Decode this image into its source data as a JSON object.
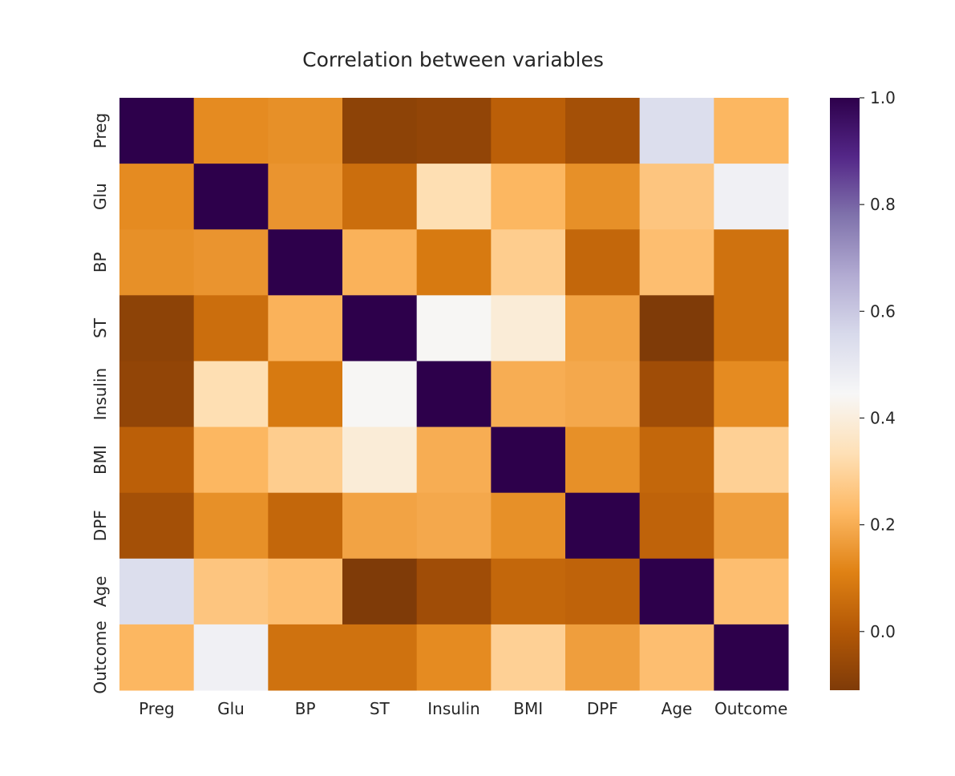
{
  "chart_data": {
    "type": "heatmap",
    "title": "Correlation between variables",
    "xlabel": "",
    "ylabel": "",
    "labels": [
      "Preg",
      "Glu",
      "BP",
      "ST",
      "Insulin",
      "BMI",
      "DPF",
      "Age",
      "Outcome"
    ],
    "values": [
      [
        1.0,
        0.13,
        0.14,
        -0.08,
        -0.07,
        0.02,
        -0.03,
        0.54,
        0.22
      ],
      [
        0.13,
        1.0,
        0.15,
        0.06,
        0.33,
        0.22,
        0.14,
        0.26,
        0.47
      ],
      [
        0.14,
        0.15,
        1.0,
        0.21,
        0.09,
        0.28,
        0.04,
        0.24,
        0.07
      ],
      [
        -0.08,
        0.06,
        0.21,
        1.0,
        0.44,
        0.39,
        0.18,
        -0.11,
        0.07
      ],
      [
        -0.07,
        0.33,
        0.09,
        0.44,
        1.0,
        0.2,
        0.19,
        -0.04,
        0.13
      ],
      [
        0.02,
        0.22,
        0.28,
        0.39,
        0.2,
        1.0,
        0.14,
        0.04,
        0.29
      ],
      [
        -0.03,
        0.14,
        0.04,
        0.18,
        0.19,
        0.14,
        1.0,
        0.03,
        0.17
      ],
      [
        0.54,
        0.26,
        0.24,
        -0.11,
        -0.04,
        0.04,
        0.03,
        1.0,
        0.24
      ],
      [
        0.22,
        0.47,
        0.07,
        0.07,
        0.13,
        0.29,
        0.17,
        0.24,
        1.0
      ]
    ],
    "colorbar": {
      "vmin": -0.11,
      "vmax": 1.0,
      "ticks": [
        0.0,
        0.2,
        0.4,
        0.6,
        0.8,
        1.0
      ],
      "tick_labels": [
        "0.0",
        "0.2",
        "0.4",
        "0.6",
        "0.8",
        "1.0"
      ],
      "colormap": "PuOr",
      "colors": [
        "#7f3b08",
        "#b35806",
        "#e08214",
        "#fdb863",
        "#fee0b6",
        "#f7f7f7",
        "#d8daeb",
        "#b2abd2",
        "#8073ac",
        "#542788",
        "#2d004b"
      ]
    }
  }
}
